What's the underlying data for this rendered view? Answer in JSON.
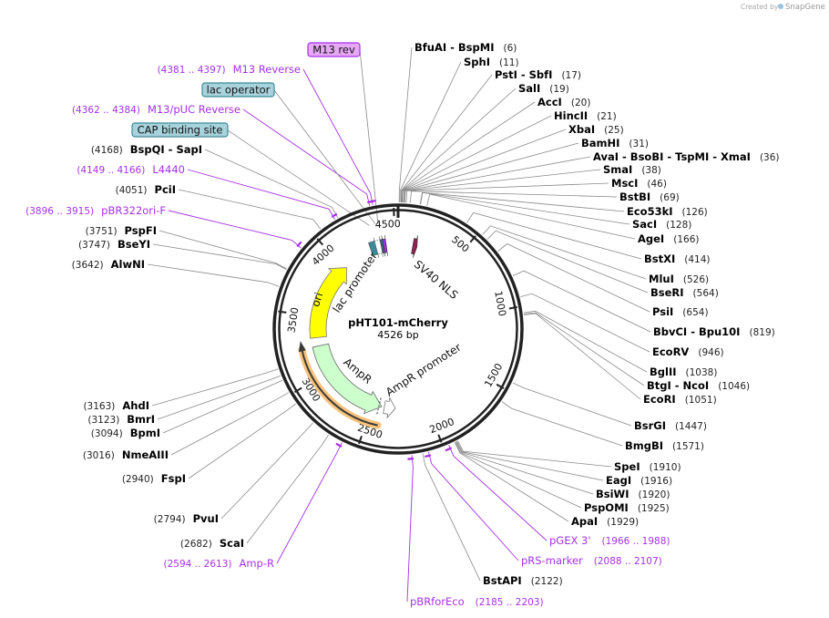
{
  "credit": {
    "text": "Created by",
    "brand": "SnapGene"
  },
  "plasmid": {
    "name": "pHT101-mCherry",
    "length": "4526 bp",
    "total_bp": 4526
  },
  "ticks": [
    "500",
    "1000",
    "1500",
    "2000",
    "2500",
    "3000",
    "3500",
    "4000",
    "4500"
  ],
  "features": {
    "ori": "ori",
    "lac_promoter": "lac promoter",
    "sv40_nls": "SV40 NLS",
    "ampr": "AmpR",
    "ampr_promoter": "AmpR promoter"
  },
  "boxed_features": [
    {
      "label": "M13 rev",
      "fill": "#e6a8f5",
      "border": "#a630ea"
    },
    {
      "label": "lac operator",
      "fill": "#a8d2dc",
      "border": "#3a8a99"
    },
    {
      "label": "CAP binding site",
      "fill": "#a8d2dc",
      "border": "#3a8a99"
    }
  ],
  "enzymes": [
    {
      "name": "BfuAI - BspMI",
      "pos": 6
    },
    {
      "name": "SphI",
      "pos": 11
    },
    {
      "name": "PstI - SbfI",
      "pos": 17
    },
    {
      "name": "SalI",
      "pos": 19
    },
    {
      "name": "AccI",
      "pos": 20
    },
    {
      "name": "HincII",
      "pos": 21
    },
    {
      "name": "XbaI",
      "pos": 25
    },
    {
      "name": "BamHI",
      "pos": 31
    },
    {
      "name": "AvaI - BsoBI - TspMI - XmaI",
      "pos": 36
    },
    {
      "name": "SmaI",
      "pos": 38
    },
    {
      "name": "MscI",
      "pos": 46
    },
    {
      "name": "BstBI",
      "pos": 69
    },
    {
      "name": "Eco53kI",
      "pos": 126
    },
    {
      "name": "SacI",
      "pos": 128
    },
    {
      "name": "AgeI",
      "pos": 166
    },
    {
      "name": "BstXI",
      "pos": 414
    },
    {
      "name": "MluI",
      "pos": 526
    },
    {
      "name": "BseRI",
      "pos": 564
    },
    {
      "name": "PsiI",
      "pos": 654
    },
    {
      "name": "BbvCI - Bpu10I",
      "pos": 819
    },
    {
      "name": "EcoRV",
      "pos": 946
    },
    {
      "name": "BglII",
      "pos": 1038
    },
    {
      "name": "BtgI - NcoI",
      "pos": 1046
    },
    {
      "name": "EcoRI",
      "pos": 1051
    },
    {
      "name": "BsrGI",
      "pos": 1447
    },
    {
      "name": "BmgBI",
      "pos": 1571
    },
    {
      "name": "SpeI",
      "pos": 1910
    },
    {
      "name": "EagI",
      "pos": 1916
    },
    {
      "name": "BsiWI",
      "pos": 1920
    },
    {
      "name": "PspOMI",
      "pos": 1925
    },
    {
      "name": "ApaI",
      "pos": 1929
    },
    {
      "name": "BstAPI",
      "pos": 2122
    },
    {
      "name": "ScaI",
      "pos": 2682
    },
    {
      "name": "PvuI",
      "pos": 2794
    },
    {
      "name": "FspI",
      "pos": 2940
    },
    {
      "name": "NmeAIII",
      "pos": 3016
    },
    {
      "name": "BpmI",
      "pos": 3094
    },
    {
      "name": "BmrI",
      "pos": 3123
    },
    {
      "name": "AhdI",
      "pos": 3163
    },
    {
      "name": "AlwNI",
      "pos": 3642
    },
    {
      "name": "BseYI",
      "pos": 3747
    },
    {
      "name": "PspFI",
      "pos": 3751
    },
    {
      "name": "PciI",
      "pos": 4051
    },
    {
      "name": "BspQI - SapI",
      "pos": 4168
    }
  ],
  "primers": [
    {
      "name": "pGEX 3'",
      "start": 1966,
      "end": 1988,
      "range": "(1966 .. 1988)"
    },
    {
      "name": "pRS-marker",
      "start": 2088,
      "end": 2107,
      "range": "(2088 .. 2107)"
    },
    {
      "name": "pBRforEco",
      "start": 2185,
      "end": 2203,
      "range": "(2185 .. 2203)"
    },
    {
      "name": "Amp-R",
      "start": 2594,
      "end": 2613,
      "range": "(2594 .. 2613)"
    },
    {
      "name": "pBR322ori-F",
      "start": 3896,
      "end": 3915,
      "range": "(3896 .. 3915)"
    },
    {
      "name": "L4440",
      "start": 4149,
      "end": 4166,
      "range": "(4149 .. 4166)"
    },
    {
      "name": "M13/pUC Reverse",
      "start": 4362,
      "end": 4384,
      "range": "(4362 .. 4384)"
    },
    {
      "name": "M13 Reverse",
      "start": 4381,
      "end": 4397,
      "range": "(4381 .. 4397)"
    }
  ],
  "colors": {
    "primer": "#a630ea",
    "ori": "#ffff00",
    "ampr": "#ccffcc",
    "selection": "#f7c37c"
  }
}
